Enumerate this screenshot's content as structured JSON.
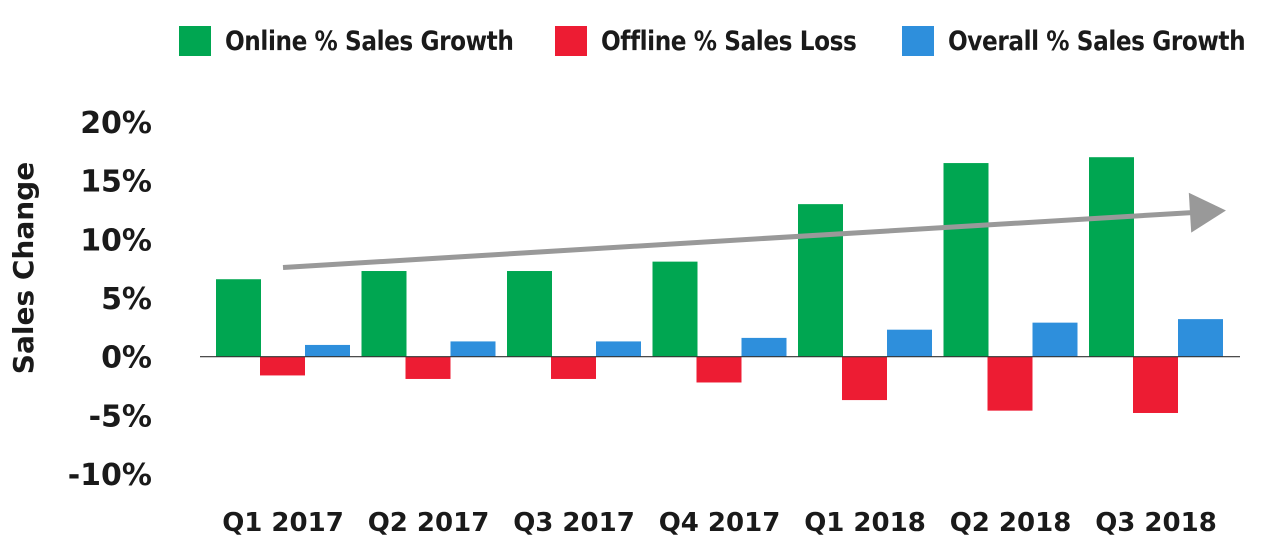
{
  "chart_data": {
    "type": "bar",
    "title": "",
    "xlabel": "",
    "ylabel": "Sales Change",
    "ylim": [
      -10,
      20
    ],
    "yticks": [
      20,
      15,
      10,
      5,
      0,
      -5,
      -10
    ],
    "ytick_labels": [
      "20%",
      "15%",
      "10%",
      "5%",
      "0%",
      "-5%",
      "-10%"
    ],
    "categories": [
      "Q1 2017",
      "Q2 2017",
      "Q3 2017",
      "Q4 2017",
      "Q1 2018",
      "Q2 2018",
      "Q3 2018"
    ],
    "series": [
      {
        "name": "Online % Sales Growth",
        "color": "#00a651",
        "values": [
          6.6,
          7.3,
          7.3,
          8.1,
          13.0,
          16.5,
          17.0
        ]
      },
      {
        "name": "Offline % Sales Loss",
        "color": "#ed1c33",
        "values": [
          -1.6,
          -1.9,
          -1.9,
          -2.2,
          -3.7,
          -4.6,
          -4.8
        ]
      },
      {
        "name": "Overall % Sales Growth",
        "color": "#2e8fdc",
        "values": [
          1.0,
          1.3,
          1.3,
          1.6,
          2.3,
          2.9,
          3.2
        ]
      }
    ],
    "legend_position": "top",
    "annotations": [
      {
        "type": "trend-arrow",
        "color": "#999999",
        "from": {
          "category": "Q1 2017",
          "value": 7.6
        },
        "to": {
          "category": "Q3 2018",
          "value": 12.3
        }
      }
    ]
  }
}
